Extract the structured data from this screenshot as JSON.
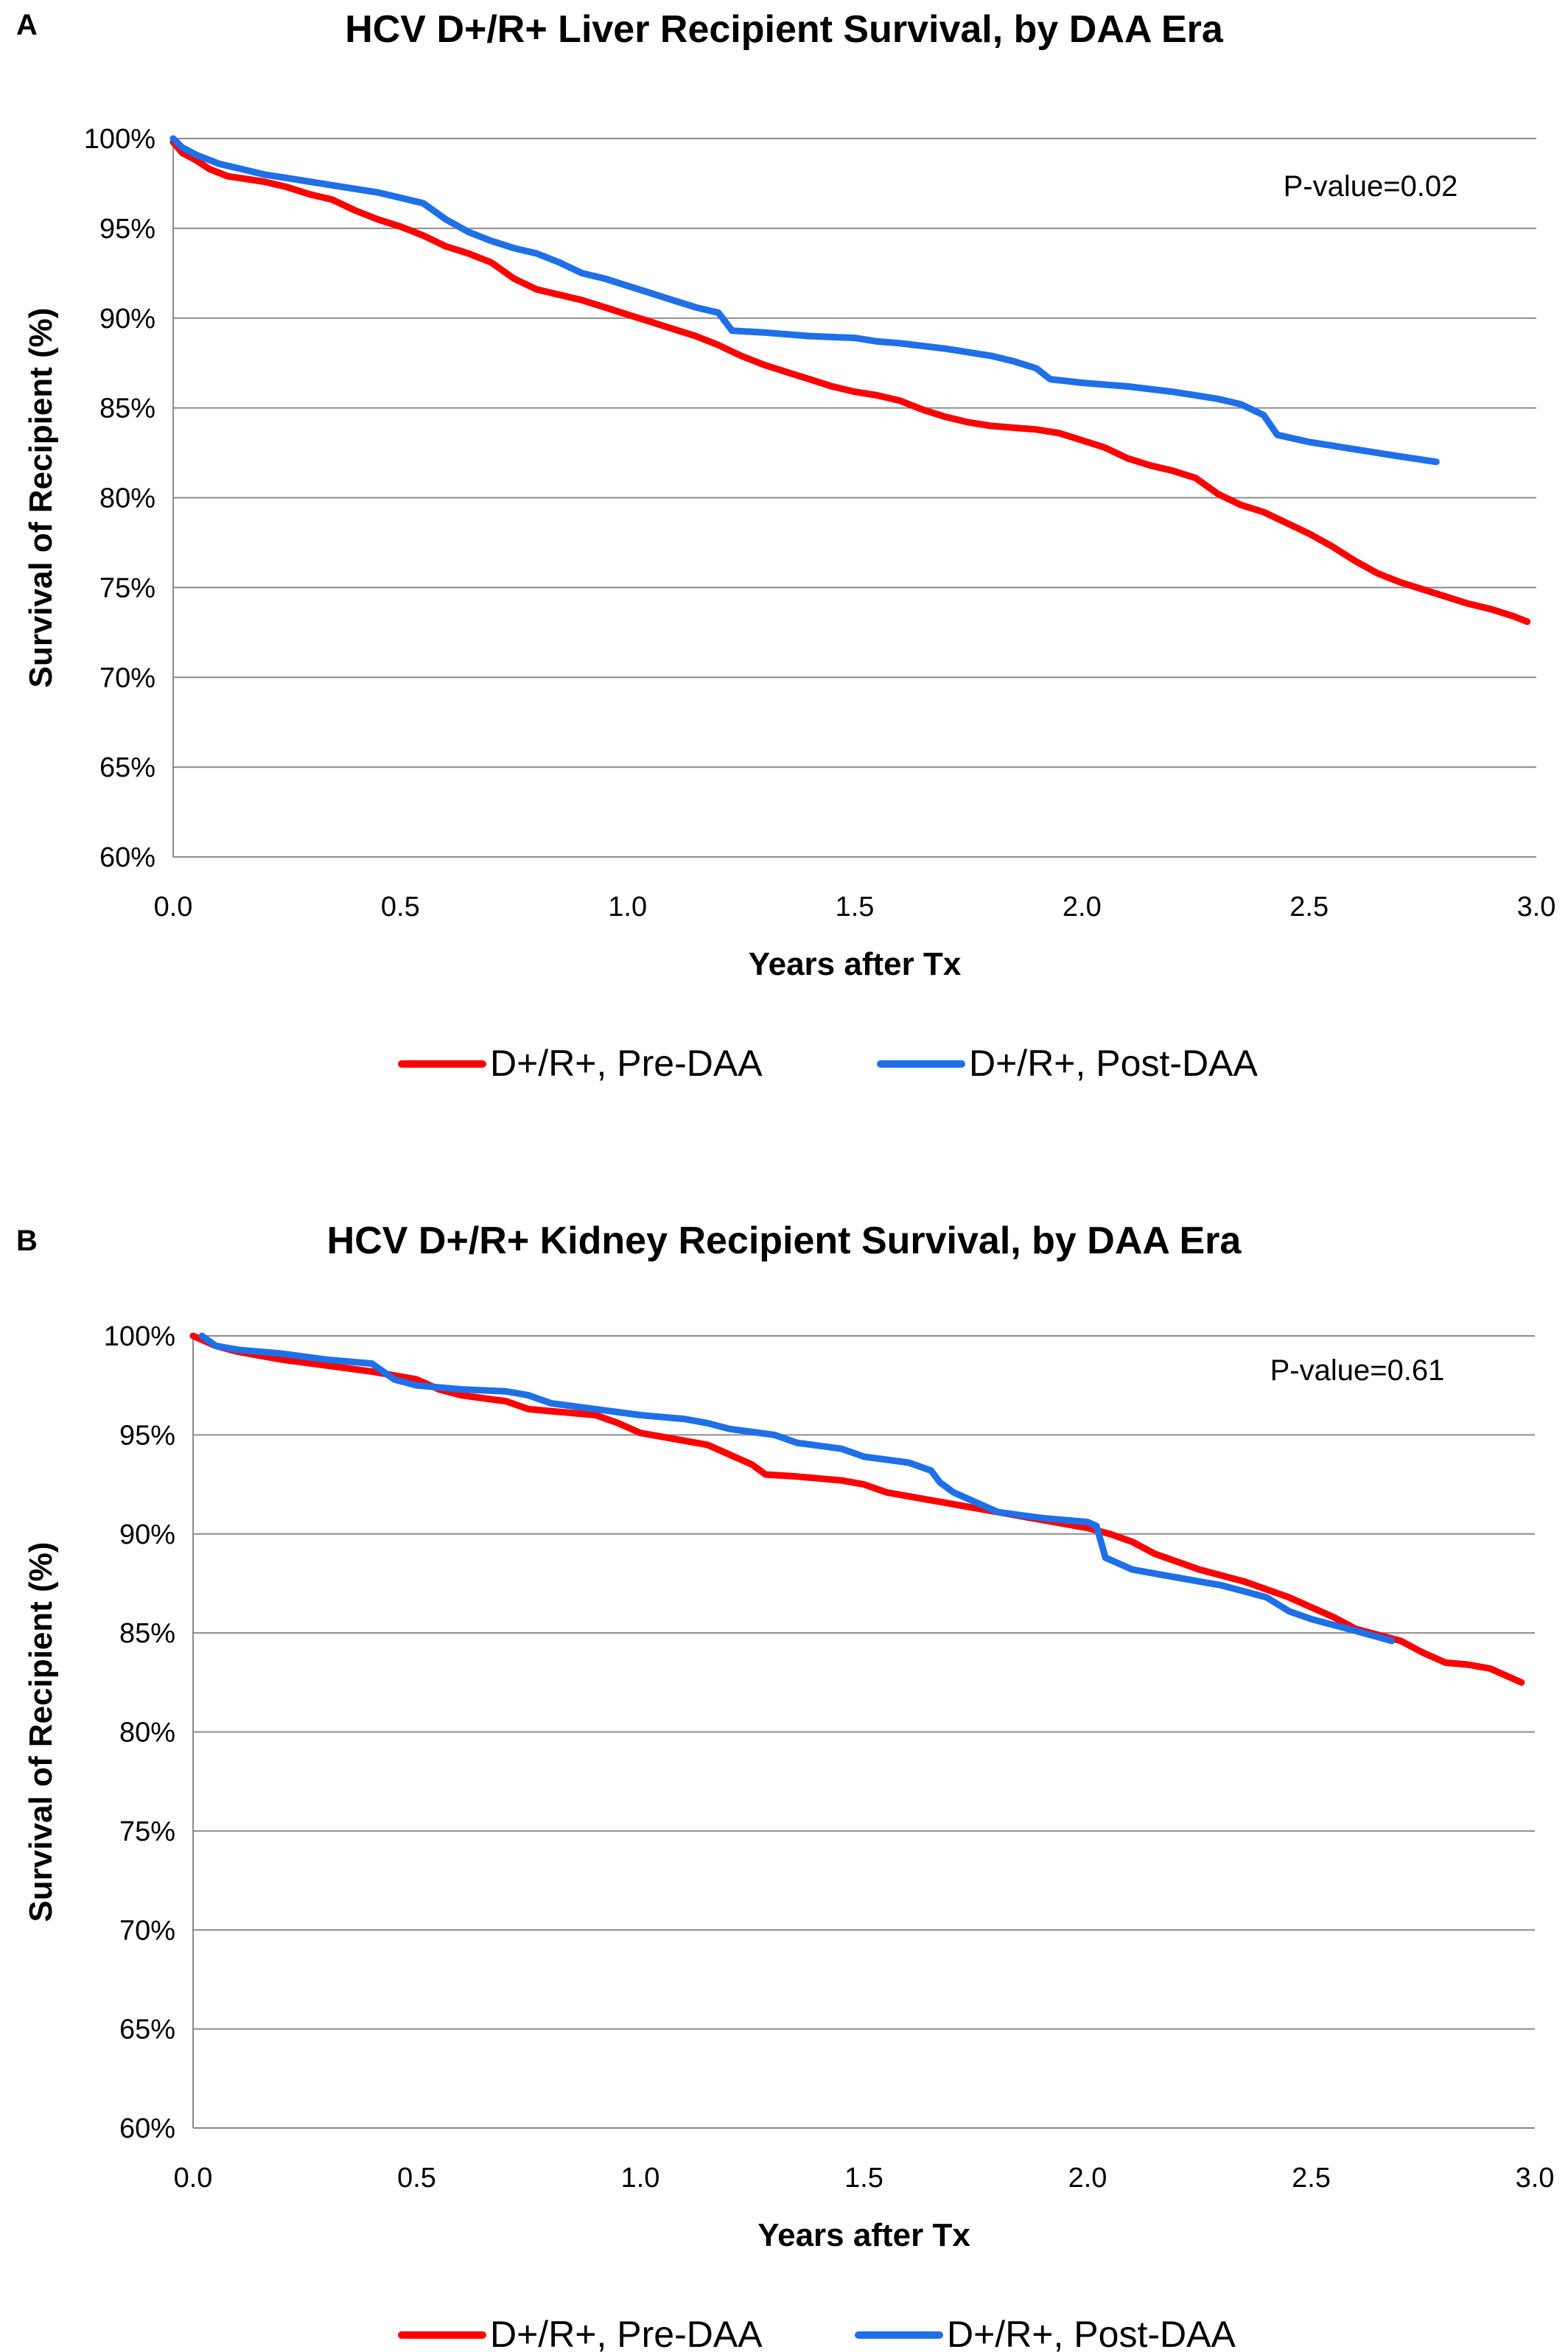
{
  "chart_data": [
    {
      "panel_label": "A",
      "type": "line",
      "title": "HCV D+/R+ Liver Recipient Survival, by DAA Era",
      "xlabel": "Years after Tx",
      "ylabel": "Survival of Recipient (%)",
      "xlim": [
        0.0,
        3.0
      ],
      "ylim": [
        60,
        100
      ],
      "x_ticks": [
        "0.0",
        "0.5",
        "1.0",
        "1.5",
        "2.0",
        "2.5",
        "3.0"
      ],
      "y_ticks": [
        "60%",
        "65%",
        "70%",
        "75%",
        "80%",
        "85%",
        "90%",
        "95%",
        "100%"
      ],
      "grid": "horizontal",
      "legend_position": "bottom",
      "annotation": "P-value=0.02",
      "series": [
        {
          "name": "D+/R+, Pre-DAA",
          "color": "#ff0000",
          "points": [
            [
              0.0,
              99.8
            ],
            [
              0.02,
              99.2
            ],
            [
              0.05,
              98.8
            ],
            [
              0.08,
              98.3
            ],
            [
              0.12,
              97.9
            ],
            [
              0.2,
              97.6
            ],
            [
              0.25,
              97.3
            ],
            [
              0.3,
              96.9
            ],
            [
              0.35,
              96.6
            ],
            [
              0.4,
              96.0
            ],
            [
              0.45,
              95.5
            ],
            [
              0.5,
              95.1
            ],
            [
              0.55,
              94.6
            ],
            [
              0.6,
              94.0
            ],
            [
              0.65,
              93.6
            ],
            [
              0.7,
              93.1
            ],
            [
              0.75,
              92.2
            ],
            [
              0.8,
              91.6
            ],
            [
              0.85,
              91.3
            ],
            [
              0.9,
              91.0
            ],
            [
              0.95,
              90.6
            ],
            [
              1.0,
              90.2
            ],
            [
              1.05,
              89.8
            ],
            [
              1.1,
              89.4
            ],
            [
              1.15,
              89.0
            ],
            [
              1.2,
              88.5
            ],
            [
              1.25,
              87.9
            ],
            [
              1.3,
              87.4
            ],
            [
              1.35,
              87.0
            ],
            [
              1.4,
              86.6
            ],
            [
              1.45,
              86.2
            ],
            [
              1.5,
              85.9
            ],
            [
              1.55,
              85.7
            ],
            [
              1.6,
              85.4
            ],
            [
              1.65,
              84.9
            ],
            [
              1.7,
              84.5
            ],
            [
              1.75,
              84.2
            ],
            [
              1.8,
              84.0
            ],
            [
              1.9,
              83.8
            ],
            [
              1.95,
              83.6
            ],
            [
              2.0,
              83.2
            ],
            [
              2.05,
              82.8
            ],
            [
              2.1,
              82.2
            ],
            [
              2.15,
              81.8
            ],
            [
              2.2,
              81.5
            ],
            [
              2.25,
              81.1
            ],
            [
              2.3,
              80.2
            ],
            [
              2.35,
              79.6
            ],
            [
              2.4,
              79.2
            ],
            [
              2.45,
              78.6
            ],
            [
              2.5,
              78.0
            ],
            [
              2.55,
              77.3
            ],
            [
              2.6,
              76.5
            ],
            [
              2.65,
              75.8
            ],
            [
              2.7,
              75.3
            ],
            [
              2.75,
              74.9
            ],
            [
              2.8,
              74.5
            ],
            [
              2.85,
              74.1
            ],
            [
              2.9,
              73.8
            ],
            [
              2.95,
              73.4
            ],
            [
              2.98,
              73.1
            ]
          ]
        },
        {
          "name": "D+/R+, Post-DAA",
          "color": "#1f6fe8",
          "points": [
            [
              0.0,
              100.0
            ],
            [
              0.02,
              99.5
            ],
            [
              0.05,
              99.1
            ],
            [
              0.1,
              98.6
            ],
            [
              0.15,
              98.3
            ],
            [
              0.2,
              98.0
            ],
            [
              0.25,
              97.8
            ],
            [
              0.3,
              97.6
            ],
            [
              0.35,
              97.4
            ],
            [
              0.4,
              97.2
            ],
            [
              0.45,
              97.0
            ],
            [
              0.5,
              96.7
            ],
            [
              0.55,
              96.4
            ],
            [
              0.6,
              95.5
            ],
            [
              0.65,
              94.8
            ],
            [
              0.7,
              94.3
            ],
            [
              0.75,
              93.9
            ],
            [
              0.8,
              93.6
            ],
            [
              0.85,
              93.1
            ],
            [
              0.9,
              92.5
            ],
            [
              0.95,
              92.2
            ],
            [
              1.0,
              91.8
            ],
            [
              1.05,
              91.4
            ],
            [
              1.1,
              91.0
            ],
            [
              1.15,
              90.6
            ],
            [
              1.2,
              90.3
            ],
            [
              1.23,
              89.3
            ],
            [
              1.3,
              89.2
            ],
            [
              1.4,
              89.0
            ],
            [
              1.5,
              88.9
            ],
            [
              1.55,
              88.7
            ],
            [
              1.6,
              88.6
            ],
            [
              1.7,
              88.3
            ],
            [
              1.8,
              87.9
            ],
            [
              1.85,
              87.6
            ],
            [
              1.9,
              87.2
            ],
            [
              1.93,
              86.6
            ],
            [
              2.0,
              86.4
            ],
            [
              2.1,
              86.2
            ],
            [
              2.2,
              85.9
            ],
            [
              2.3,
              85.5
            ],
            [
              2.35,
              85.2
            ],
            [
              2.4,
              84.6
            ],
            [
              2.43,
              83.5
            ],
            [
              2.5,
              83.1
            ],
            [
              2.6,
              82.7
            ],
            [
              2.7,
              82.3
            ],
            [
              2.78,
              82.0
            ]
          ]
        }
      ]
    },
    {
      "panel_label": "B",
      "type": "line",
      "title": "HCV D+/R+ Kidney Recipient Survival, by DAA Era",
      "xlabel": "Years after Tx",
      "ylabel": "Survival of Recipient (%)",
      "xlim": [
        0.0,
        3.0
      ],
      "ylim": [
        60,
        100
      ],
      "x_ticks": [
        "0.0",
        "0.5",
        "1.0",
        "1.5",
        "2.0",
        "2.5",
        "3.0"
      ],
      "y_ticks": [
        "60%",
        "65%",
        "70%",
        "75%",
        "80%",
        "85%",
        "90%",
        "95%",
        "100%"
      ],
      "grid": "horizontal",
      "legend_position": "bottom",
      "annotation": "P-value=0.61",
      "series": [
        {
          "name": "D+/R+, Pre-DAA",
          "color": "#ff0000",
          "points": [
            [
              0.0,
              100.0
            ],
            [
              0.05,
              99.5
            ],
            [
              0.1,
              99.2
            ],
            [
              0.15,
              99.0
            ],
            [
              0.2,
              98.8
            ],
            [
              0.3,
              98.5
            ],
            [
              0.4,
              98.2
            ],
            [
              0.5,
              97.8
            ],
            [
              0.55,
              97.3
            ],
            [
              0.6,
              97.0
            ],
            [
              0.7,
              96.7
            ],
            [
              0.75,
              96.3
            ],
            [
              0.8,
              96.2
            ],
            [
              0.9,
              96.0
            ],
            [
              0.95,
              95.6
            ],
            [
              1.0,
              95.1
            ],
            [
              1.1,
              94.7
            ],
            [
              1.15,
              94.5
            ],
            [
              1.2,
              94.0
            ],
            [
              1.25,
              93.5
            ],
            [
              1.28,
              93.0
            ],
            [
              1.35,
              92.9
            ],
            [
              1.45,
              92.7
            ],
            [
              1.5,
              92.5
            ],
            [
              1.55,
              92.1
            ],
            [
              1.65,
              91.7
            ],
            [
              1.7,
              91.5
            ],
            [
              1.75,
              91.3
            ],
            [
              1.8,
              91.1
            ],
            [
              1.85,
              90.9
            ],
            [
              1.9,
              90.7
            ],
            [
              1.95,
              90.5
            ],
            [
              2.0,
              90.3
            ],
            [
              2.05,
              90.0
            ],
            [
              2.1,
              89.6
            ],
            [
              2.15,
              89.0
            ],
            [
              2.2,
              88.6
            ],
            [
              2.25,
              88.2
            ],
            [
              2.3,
              87.9
            ],
            [
              2.35,
              87.6
            ],
            [
              2.4,
              87.2
            ],
            [
              2.45,
              86.8
            ],
            [
              2.5,
              86.3
            ],
            [
              2.55,
              85.8
            ],
            [
              2.6,
              85.2
            ],
            [
              2.65,
              84.9
            ],
            [
              2.7,
              84.6
            ],
            [
              2.75,
              84.0
            ],
            [
              2.8,
              83.5
            ],
            [
              2.85,
              83.4
            ],
            [
              2.9,
              83.2
            ],
            [
              2.95,
              82.7
            ],
            [
              2.97,
              82.5
            ]
          ]
        },
        {
          "name": "D+/R+, Post-DAA",
          "color": "#1f6fe8",
          "points": [
            [
              0.02,
              100.0
            ],
            [
              0.05,
              99.5
            ],
            [
              0.1,
              99.3
            ],
            [
              0.2,
              99.1
            ],
            [
              0.3,
              98.8
            ],
            [
              0.4,
              98.6
            ],
            [
              0.45,
              97.8
            ],
            [
              0.5,
              97.5
            ],
            [
              0.6,
              97.3
            ],
            [
              0.7,
              97.2
            ],
            [
              0.75,
              97.0
            ],
            [
              0.8,
              96.6
            ],
            [
              0.9,
              96.3
            ],
            [
              1.0,
              96.0
            ],
            [
              1.1,
              95.8
            ],
            [
              1.15,
              95.6
            ],
            [
              1.2,
              95.3
            ],
            [
              1.3,
              95.0
            ],
            [
              1.35,
              94.6
            ],
            [
              1.45,
              94.3
            ],
            [
              1.5,
              93.9
            ],
            [
              1.6,
              93.6
            ],
            [
              1.65,
              93.2
            ],
            [
              1.67,
              92.6
            ],
            [
              1.7,
              92.1
            ],
            [
              1.75,
              91.6
            ],
            [
              1.8,
              91.1
            ],
            [
              1.9,
              90.8
            ],
            [
              2.0,
              90.6
            ],
            [
              2.02,
              90.4
            ],
            [
              2.04,
              88.8
            ],
            [
              2.1,
              88.2
            ],
            [
              2.2,
              87.8
            ],
            [
              2.3,
              87.4
            ],
            [
              2.35,
              87.1
            ],
            [
              2.4,
              86.8
            ],
            [
              2.45,
              86.1
            ],
            [
              2.5,
              85.7
            ],
            [
              2.6,
              85.1
            ],
            [
              2.68,
              84.6
            ]
          ]
        }
      ]
    }
  ]
}
